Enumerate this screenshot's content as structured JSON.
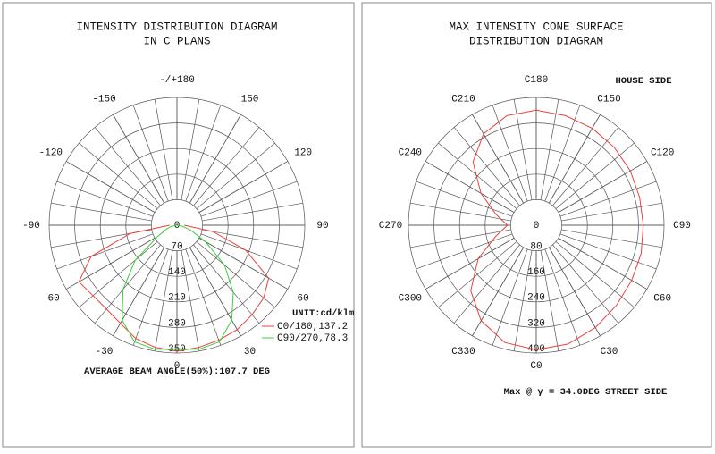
{
  "chart_data": [
    {
      "type": "polar",
      "title": [
        "INTENSITY DISTRIBUTION DIAGRAM",
        "IN C PLANS"
      ],
      "angle_ticks": [
        {
          "value": 180,
          "label": "-/+180"
        },
        -150,
        150,
        -120,
        120,
        -90,
        90,
        -60,
        60,
        -30,
        30,
        0
      ],
      "rlim": [
        0,
        350
      ],
      "rticks": [
        0,
        70,
        140,
        210,
        280,
        350
      ],
      "x": [
        -90,
        -80,
        -70,
        -60,
        -50,
        -40,
        -30,
        -20,
        -10,
        0,
        10,
        20,
        30,
        40,
        50,
        60,
        70,
        80,
        90
      ],
      "series": [
        {
          "name": "C0/180,137.2",
          "color": "#e8423c",
          "values": [
            20,
            130,
            250,
            310,
            300,
            300,
            310,
            330,
            340,
            345,
            340,
            335,
            330,
            320,
            310,
            290,
            200,
            100,
            20
          ]
        },
        {
          "name": "C90/270,78.3",
          "color": "#3ccf3c",
          "values": [
            0,
            15,
            30,
            60,
            150,
            230,
            300,
            340,
            345,
            340,
            345,
            340,
            300,
            240,
            170,
            90,
            40,
            15,
            0
          ]
        }
      ],
      "unit": "UNIT:cd/klm",
      "annotation": "AVERAGE BEAM ANGLE(50%):107.7 DEG"
    },
    {
      "type": "polar",
      "title": [
        "MAX INTENSITY CONE SURFACE",
        "DISTRIBUTION DIAGRAM"
      ],
      "angle_ticks": [
        {
          "value": 0,
          "label": "C0"
        },
        {
          "value": 30,
          "label": "C30"
        },
        {
          "value": 60,
          "label": "C60"
        },
        {
          "value": 90,
          "label": "C90"
        },
        {
          "value": 120,
          "label": "C120"
        },
        {
          "value": 150,
          "label": "C150"
        },
        {
          "value": 180,
          "label": "C180"
        },
        {
          "value": 210,
          "label": "C210"
        },
        {
          "value": 240,
          "label": "C240"
        },
        {
          "value": 270,
          "label": "C270"
        },
        {
          "value": 300,
          "label": "C300"
        },
        {
          "value": 330,
          "label": "C330"
        }
      ],
      "rlim": [
        0,
        400
      ],
      "rticks": [
        0,
        80,
        160,
        240,
        320,
        400
      ],
      "closed": true,
      "x": [
        0,
        15,
        30,
        45,
        60,
        75,
        90,
        105,
        120,
        135,
        150,
        165,
        180,
        195,
        210,
        225,
        240,
        255,
        270,
        285,
        300,
        315,
        330,
        345
      ],
      "series": [
        {
          "color": "#e8423c",
          "values": [
            390,
            385,
            370,
            355,
            345,
            340,
            335,
            335,
            340,
            345,
            350,
            355,
            360,
            355,
            330,
            280,
            200,
            130,
            90,
            130,
            210,
            290,
            345,
            380
          ]
        }
      ],
      "annotation_top": "HOUSE SIDE",
      "annotation": "Max @ γ = 34.0DEG STREET SIDE"
    }
  ]
}
